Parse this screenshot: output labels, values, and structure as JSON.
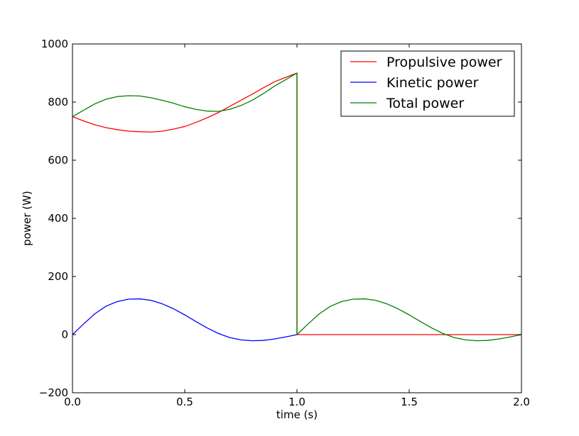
{
  "chart_data": {
    "type": "line",
    "xlabel": "time (s)",
    "ylabel": "power (W)",
    "xlim": [
      0.0,
      2.0
    ],
    "ylim": [
      -200,
      1000
    ],
    "xticks": [
      0.0,
      0.5,
      1.0,
      1.5,
      2.0
    ],
    "xtick_labels": [
      "0.0",
      "0.5",
      "1.0",
      "1.5",
      "2.0"
    ],
    "yticks": [
      -200,
      0,
      200,
      400,
      600,
      800,
      1000
    ],
    "ytick_labels": [
      "−200",
      "0",
      "200",
      "400",
      "600",
      "800",
      "1000"
    ],
    "grid": false,
    "legend_position": "top-right",
    "series": [
      {
        "name": "Propulsive power",
        "color": "#ff0000",
        "x": [
          0.0,
          0.05,
          0.1,
          0.15,
          0.2,
          0.25,
          0.3,
          0.35,
          0.4,
          0.45,
          0.5,
          0.55,
          0.6,
          0.65,
          0.7,
          0.75,
          0.8,
          0.85,
          0.9,
          0.95,
          1.0,
          1.0,
          1.25,
          1.5,
          1.75,
          2.0
        ],
        "y": [
          750,
          735,
          722,
          712,
          705,
          700,
          698,
          697,
          700,
          707,
          716,
          730,
          746,
          764,
          785,
          806,
          827,
          849,
          870,
          885,
          900,
          0,
          0,
          0,
          0,
          0
        ]
      },
      {
        "name": "Kinetic power",
        "color": "#0000ff",
        "x": [
          0.0,
          0.05,
          0.1,
          0.15,
          0.2,
          0.25,
          0.3,
          0.35,
          0.4,
          0.45,
          0.5,
          0.55,
          0.6,
          0.65,
          0.7,
          0.75,
          0.8,
          0.85,
          0.9,
          0.95,
          1.0
        ],
        "y": [
          0,
          37,
          72,
          98,
          114,
          122,
          123,
          118,
          106,
          89,
          68,
          45,
          23,
          4,
          -10,
          -18,
          -21,
          -20,
          -15,
          -8,
          0
        ]
      },
      {
        "name": "Total power",
        "color": "#008000",
        "x": [
          0.0,
          0.05,
          0.1,
          0.15,
          0.2,
          0.25,
          0.3,
          0.35,
          0.4,
          0.45,
          0.5,
          0.55,
          0.6,
          0.65,
          0.7,
          0.75,
          0.8,
          0.85,
          0.9,
          0.95,
          1.0,
          1.0,
          1.05,
          1.1,
          1.15,
          1.2,
          1.25,
          1.3,
          1.35,
          1.4,
          1.45,
          1.5,
          1.55,
          1.6,
          1.65,
          1.7,
          1.75,
          1.8,
          1.85,
          1.9,
          1.95,
          2.0
        ],
        "y": [
          750,
          772,
          794,
          810,
          819,
          822,
          821,
          815,
          806,
          796,
          784,
          775,
          769,
          768,
          775,
          788,
          806,
          829,
          855,
          877,
          900,
          0,
          37,
          72,
          98,
          114,
          122,
          123,
          118,
          106,
          89,
          68,
          45,
          23,
          4,
          -10,
          -18,
          -21,
          -20,
          -15,
          -8,
          0
        ]
      }
    ]
  }
}
